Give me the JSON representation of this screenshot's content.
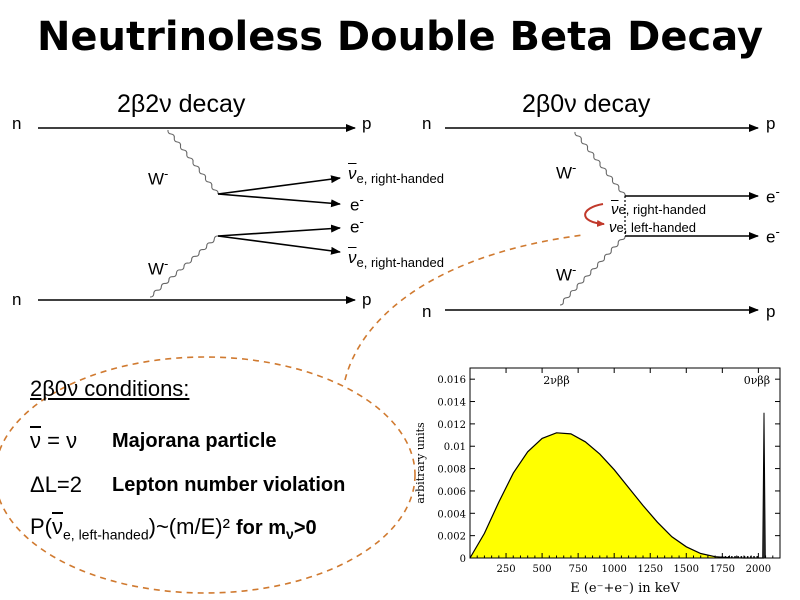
{
  "title": "Neutrinoless Double Beta Decay",
  "left_diagram": {
    "title": "2β2ν decay",
    "n_top": "n",
    "p_top": "p",
    "n_bottom": "n",
    "p_bottom": "p",
    "w_top": "W",
    "w_bottom": "W",
    "w_sup": "-",
    "nu_symbol": "ν",
    "nu_sub": "e, right-handed",
    "electron": "e",
    "electron_sup": "-"
  },
  "right_diagram": {
    "title": "2β0ν decay",
    "n_top": "n",
    "p_top": "p",
    "n_bottom": "n",
    "p_bottom": "p",
    "w_top": "W",
    "w_bottom": "W",
    "w_sup": "-",
    "nu_symbol": "ν",
    "nu_right_sub": "e, right-handed",
    "nu_left_sub": "e, left-handed",
    "electron": "e",
    "electron_sup": "-"
  },
  "conditions": {
    "header": "2β0ν conditions:",
    "items": [
      {
        "formula_lhs": "ν",
        "formula_eq": " = ν",
        "description": "Majorana particle"
      },
      {
        "formula": "ΔL=2",
        "description": "Lepton number violation"
      },
      {
        "prob_prefix": "P(",
        "prob_nu": "ν",
        "prob_sub": "e, left-handed",
        "prob_suffix": ")~(m/E)²",
        "cond_prefix": "for m",
        "cond_sub": "ν",
        "cond_suffix": ">0"
      }
    ]
  },
  "colors": {
    "accent_arrow": "#c1392b",
    "dashed_ellipse": "#d07a30",
    "spectrum_fill": "#ffff00"
  },
  "chart_data": {
    "type": "area",
    "xlabel": "E (e⁻+e⁻) in keV",
    "ylabel": "arbitrary units",
    "xlim": [
      0,
      2150
    ],
    "ylim": [
      0,
      0.017
    ],
    "x_ticks": [
      "250",
      "500",
      "750",
      "1000",
      "1250",
      "1500",
      "1750",
      "2000"
    ],
    "y_ticks": [
      "0",
      "0.002",
      "0.004",
      "0.006",
      "0.008",
      "0.01",
      "0.012",
      "0.014",
      "0.016"
    ],
    "annotations": [
      "2νββ",
      "0νββ"
    ],
    "series": [
      {
        "x": [
          0,
          100,
          200,
          300,
          400,
          500,
          600,
          700,
          800,
          900,
          1000,
          1100,
          1200,
          1300,
          1400,
          1500,
          1600,
          1700,
          1800,
          1900,
          2000,
          2039
        ],
        "values": [
          0.0,
          0.0022,
          0.005,
          0.0076,
          0.0095,
          0.0107,
          0.0112,
          0.0111,
          0.0104,
          0.0093,
          0.0079,
          0.0063,
          0.0047,
          0.0032,
          0.0019,
          0.001,
          0.0004,
          0.00012,
          3e-05,
          0.0,
          0.0,
          0.0
        ]
      },
      {
        "x": [
          2030,
          2039,
          2048
        ],
        "values": [
          0.0,
          0.013,
          0.0
        ]
      }
    ]
  }
}
